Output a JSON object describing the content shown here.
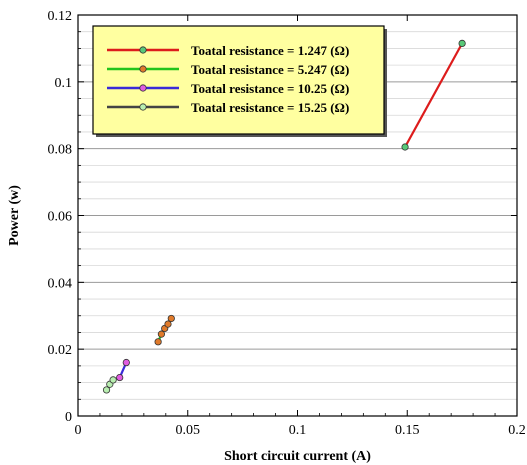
{
  "chart_data": {
    "type": "line",
    "title": "",
    "xlabel": "Short circuit current (A)",
    "ylabel": "Power (w)",
    "xlim": [
      0,
      0.2
    ],
    "ylim": [
      0,
      0.12
    ],
    "xticks": [
      0,
      0.05,
      0.1,
      0.15,
      0.2
    ],
    "xtick_labels": [
      "0",
      "0.05",
      "0.1",
      "0.15",
      "0.2"
    ],
    "yticks": [
      0,
      0.02,
      0.04,
      0.06,
      0.08,
      0.1,
      0.12
    ],
    "ytick_labels": [
      "0",
      "0.02",
      "0.04",
      "0.06",
      "0.08",
      "0.1",
      "0.12"
    ],
    "grid": "horizontal",
    "legend_position": "top-left",
    "legend_background": "#ffffa0",
    "series": [
      {
        "name": "Toatal resistance = 1.247 (Ω)",
        "line_color": "#dd1c1c",
        "marker_color": "#58c878",
        "x": [
          0.149,
          0.175
        ],
        "y": [
          0.0805,
          0.1115
        ]
      },
      {
        "name": "Toatal resistance = 5.247 (Ω)",
        "line_color": "#22c41c",
        "marker_color": "#e07a2a",
        "x": [
          0.0365,
          0.038,
          0.0395,
          0.041,
          0.0425
        ],
        "y": [
          0.0222,
          0.0245,
          0.0262,
          0.0275,
          0.0292
        ]
      },
      {
        "name": "Toatal resistance = 10.25 (Ω)",
        "line_color": "#3a2ad8",
        "marker_color": "#e05ce0",
        "x": [
          0.019,
          0.022
        ],
        "y": [
          0.0115,
          0.016
        ]
      },
      {
        "name": "Toatal resistance = 15.25 (Ω)",
        "line_color": "#444444",
        "marker_color": "#b8eeb0",
        "x": [
          0.013,
          0.0145,
          0.016
        ],
        "y": [
          0.0078,
          0.0095,
          0.0108
        ]
      }
    ]
  }
}
